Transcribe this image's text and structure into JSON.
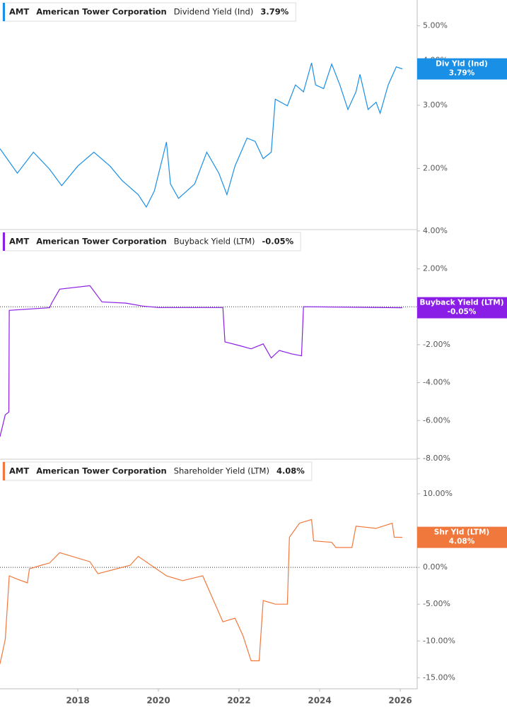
{
  "chart_data": [
    {
      "type": "line",
      "ticker": "AMT",
      "company": "American Tower Corporation",
      "tag_label": "Div Yld (Ind)",
      "value_label": "3.79%",
      "log_scale": true,
      "zero_line": false,
      "x": [
        2016.07,
        2016.5,
        2016.9,
        2017.3,
        2017.6,
        2018.0,
        2018.4,
        2018.8,
        2019.1,
        2019.5,
        2019.7,
        2019.9,
        2020.2,
        2020.3,
        2020.5,
        2020.9,
        2021.2,
        2021.5,
        2021.7,
        2021.9,
        2022.2,
        2022.4,
        2022.6,
        2022.8,
        2022.9,
        2023.2,
        2023.4,
        2023.6,
        2023.8,
        2023.9,
        2024.1,
        2024.3,
        2024.5,
        2024.7,
        2024.9,
        2025.0,
        2025.2,
        2025.4,
        2025.5,
        2025.7,
        2025.9,
        2026.05
      ],
      "series": [
        {
          "name": "Dividend Yield (Ind)",
          "color": "#1a8fe6",
          "values": [
            2.27,
            1.94,
            2.22,
            1.99,
            1.79,
            2.03,
            2.22,
            2.03,
            1.85,
            1.69,
            1.56,
            1.73,
            2.37,
            1.81,
            1.65,
            1.81,
            2.22,
            1.94,
            1.69,
            2.03,
            2.43,
            2.38,
            2.13,
            2.22,
            3.12,
            2.99,
            3.42,
            3.27,
            3.94,
            3.42,
            3.34,
            3.91,
            3.42,
            2.92,
            3.27,
            3.66,
            2.92,
            3.06,
            2.85,
            3.42,
            3.84,
            3.79
          ]
        }
      ],
      "xlim": [
        2016.07,
        2026.42
      ],
      "ylim": [
        1.35,
        5.9
      ],
      "yticks": [
        {
          "value": 5,
          "label": "5.00%"
        },
        {
          "value": 4,
          "label": "4.00%"
        },
        {
          "value": 3,
          "label": "3.00%"
        },
        {
          "value": 2,
          "label": "2.00%"
        }
      ]
    },
    {
      "type": "line",
      "ticker": "AMT",
      "company": "American Tower Corporation",
      "tag_label": "Buyback Yield (LTM)",
      "value_label": "-0.05%",
      "log_scale": false,
      "zero_line": true,
      "x": [
        2016.07,
        2016.2,
        2016.29,
        2016.3,
        2017.3,
        2017.35,
        2017.55,
        2018.3,
        2018.6,
        2019.2,
        2019.6,
        2020.0,
        2021.6,
        2021.65,
        2022.0,
        2022.3,
        2022.6,
        2022.8,
        2023.0,
        2023.3,
        2023.55,
        2023.6,
        2026.05
      ],
      "series": [
        {
          "name": "Buyback Yield (LTM)",
          "color": "#8a1ee6",
          "values": [
            -6.85,
            -5.7,
            -5.55,
            -0.19,
            -0.05,
            0.19,
            0.93,
            1.11,
            0.26,
            0.19,
            0.04,
            -0.04,
            -0.04,
            -1.85,
            -2.04,
            -2.22,
            -1.96,
            -2.7,
            -2.3,
            -2.48,
            -2.59,
            0,
            -0.05
          ]
        }
      ],
      "xlim": [
        2016.07,
        2026.42
      ],
      "ylim": [
        -8.04,
        4.07
      ],
      "yticks": [
        {
          "value": 4,
          "label": "4.00%"
        },
        {
          "value": 2,
          "label": "2.00%"
        },
        {
          "value": 0,
          "label": "0.00%"
        },
        {
          "value": -2,
          "label": "-2.00%"
        },
        {
          "value": -4,
          "label": "-4.00%"
        },
        {
          "value": -6,
          "label": "-6.00%"
        },
        {
          "value": -8,
          "label": "-8.00%"
        }
      ]
    },
    {
      "type": "line",
      "ticker": "AMT",
      "company": "American Tower Corporation",
      "tag_label": "Shr Yld (LTM)",
      "value_label": "4.08%",
      "log_scale": false,
      "zero_line": true,
      "x": [
        2016.07,
        2016.2,
        2016.3,
        2016.5,
        2016.75,
        2016.8,
        2017.1,
        2017.3,
        2017.55,
        2018.3,
        2018.5,
        2019.3,
        2019.5,
        2020.2,
        2020.6,
        2021.1,
        2021.6,
        2021.9,
        2022.1,
        2022.3,
        2022.5,
        2022.6,
        2022.9,
        2023.2,
        2023.25,
        2023.5,
        2023.8,
        2023.85,
        2024.3,
        2024.4,
        2024.8,
        2024.9,
        2025.4,
        2025.8,
        2025.85,
        2026.05
      ],
      "series": [
        {
          "name": "Shareholder Yield (LTM)",
          "color": "#f0783c",
          "values": [
            -13.1,
            -9.8,
            -1.15,
            -1.6,
            -2.1,
            -0.2,
            0.3,
            0.6,
            2.0,
            0.77,
            -0.86,
            0.29,
            1.5,
            -1.15,
            -1.8,
            -1.15,
            -7.4,
            -6.9,
            -9.3,
            -12.7,
            -12.7,
            -4.5,
            -5.0,
            -5.0,
            4.1,
            6.0,
            6.5,
            3.6,
            3.4,
            2.7,
            2.7,
            5.6,
            5.3,
            6.0,
            4.1,
            4.08
          ]
        }
      ],
      "xlim": [
        2016.07,
        2026.42
      ],
      "ylim": [
        -16.5,
        14.7
      ],
      "xticks": [
        2018,
        2020,
        2022,
        2024,
        2026
      ],
      "yticks": [
        {
          "value": 10,
          "label": "10.00%"
        },
        {
          "value": 5,
          "label": "5.00%"
        },
        {
          "value": 0,
          "label": "0.00%"
        },
        {
          "value": -5,
          "label": "-5.00%"
        },
        {
          "value": -10,
          "label": "-10.00%"
        },
        {
          "value": -15,
          "label": "-15.00%"
        }
      ]
    }
  ]
}
